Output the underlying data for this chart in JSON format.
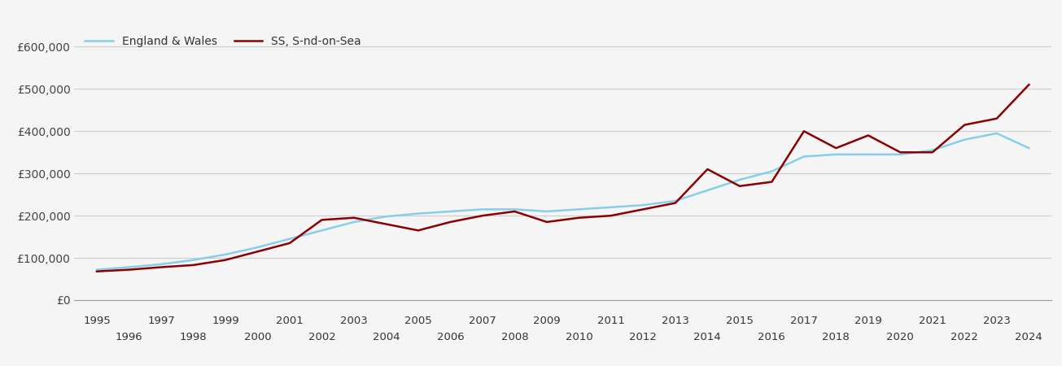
{
  "years": [
    1995,
    1996,
    1997,
    1998,
    1999,
    2000,
    2001,
    2002,
    2003,
    2004,
    2005,
    2006,
    2007,
    2008,
    2009,
    2010,
    2011,
    2012,
    2013,
    2014,
    2015,
    2016,
    2017,
    2018,
    2019,
    2020,
    2021,
    2022,
    2023,
    2024
  ],
  "southend": [
    68000,
    72000,
    78000,
    83000,
    95000,
    115000,
    135000,
    190000,
    195000,
    180000,
    165000,
    185000,
    200000,
    210000,
    185000,
    195000,
    200000,
    215000,
    230000,
    310000,
    270000,
    280000,
    400000,
    360000,
    390000,
    350000,
    350000,
    415000,
    430000,
    510000
  ],
  "england_wales": [
    72000,
    78000,
    85000,
    95000,
    108000,
    125000,
    145000,
    165000,
    185000,
    198000,
    205000,
    210000,
    215000,
    215000,
    210000,
    215000,
    220000,
    225000,
    235000,
    260000,
    285000,
    305000,
    340000,
    345000,
    345000,
    345000,
    355000,
    380000,
    395000,
    360000
  ],
  "ss_color": "#8B0000",
  "ew_color": "#87CEEB",
  "ss_label": "SS, S-nd-on-Sea",
  "ew_label": "England & Wales",
  "ylim": [
    0,
    650000
  ],
  "yticks": [
    0,
    100000,
    200000,
    300000,
    400000,
    500000,
    600000
  ],
  "ytick_labels": [
    "£0",
    "£100,000",
    "£200,000",
    "£300,000",
    "£400,000",
    "£500,000",
    "£600,000"
  ],
  "background_color": "#f5f5f5",
  "line_width": 1.8,
  "grid_color": "#cccccc"
}
